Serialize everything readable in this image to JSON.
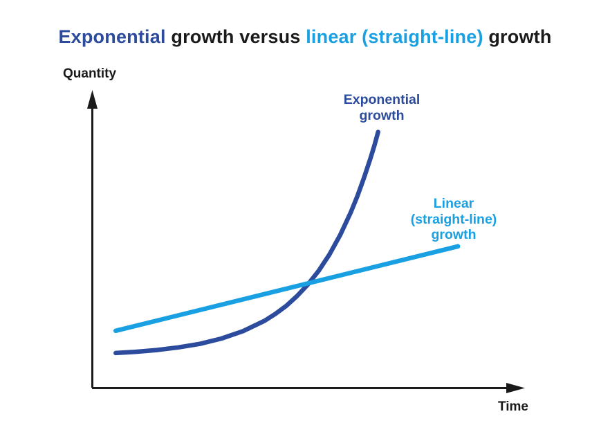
{
  "title": {
    "part1": "Exponential",
    "part2": " growth versus ",
    "part3": "linear (straight-line)",
    "part4": " growth"
  },
  "axes": {
    "y_label": "Quantity",
    "x_label": "Time"
  },
  "curve_labels": {
    "exponential": "Exponential\ngrowth",
    "linear": "Linear\n(straight-line)\ngrowth"
  },
  "colors": {
    "exponential": "#2c4b9c",
    "linear": "#18a0e2",
    "axis": "#1a1a1a",
    "text": "#1a1a1a"
  },
  "chart_data": {
    "type": "line",
    "title": "Exponential growth versus linear (straight-line) growth",
    "xlabel": "Time",
    "ylabel": "Quantity",
    "xlim": [
      0,
      10
    ],
    "ylim": [
      0,
      10
    ],
    "grid": false,
    "ticks": "none (conceptual diagram, unlabeled axes with arrowheads)",
    "legend_position": "labels placed beside each curve",
    "annotations": [
      {
        "text": "Exponential growth",
        "color": "#2c4b9c",
        "anchor_x": 6.7,
        "anchor_y": 9.6
      },
      {
        "text": "Linear (straight-line) growth",
        "color": "#18a0e2",
        "anchor_x": 8.4,
        "anchor_y": 6.2
      }
    ],
    "series": [
      {
        "name": "Exponential growth",
        "color": "#2c4b9c",
        "shape": "exponential curve q = 0.073·e^(0.7t) + 1.06",
        "points": [
          [
            0.55,
            1.17
          ],
          [
            1.0,
            1.21
          ],
          [
            1.5,
            1.27
          ],
          [
            2.0,
            1.36
          ],
          [
            2.5,
            1.48
          ],
          [
            3.0,
            1.66
          ],
          [
            3.5,
            1.91
          ],
          [
            4.0,
            2.26
          ],
          [
            4.25,
            2.49
          ],
          [
            4.5,
            2.76
          ],
          [
            4.75,
            3.09
          ],
          [
            5.0,
            3.48
          ],
          [
            5.25,
            3.94
          ],
          [
            5.5,
            4.49
          ],
          [
            5.75,
            5.15
          ],
          [
            6.0,
            5.93
          ],
          [
            6.15,
            6.47
          ],
          [
            6.3,
            7.07
          ],
          [
            6.45,
            7.73
          ],
          [
            6.55,
            8.2
          ],
          [
            6.63,
            8.63
          ]
        ]
      },
      {
        "name": "Linear (straight-line) growth",
        "color": "#18a0e2",
        "shape": "straight line",
        "points": [
          [
            0.55,
            1.92
          ],
          [
            8.48,
            4.77
          ]
        ]
      }
    ],
    "intersection_point": [
      5.05,
      3.55
    ]
  }
}
